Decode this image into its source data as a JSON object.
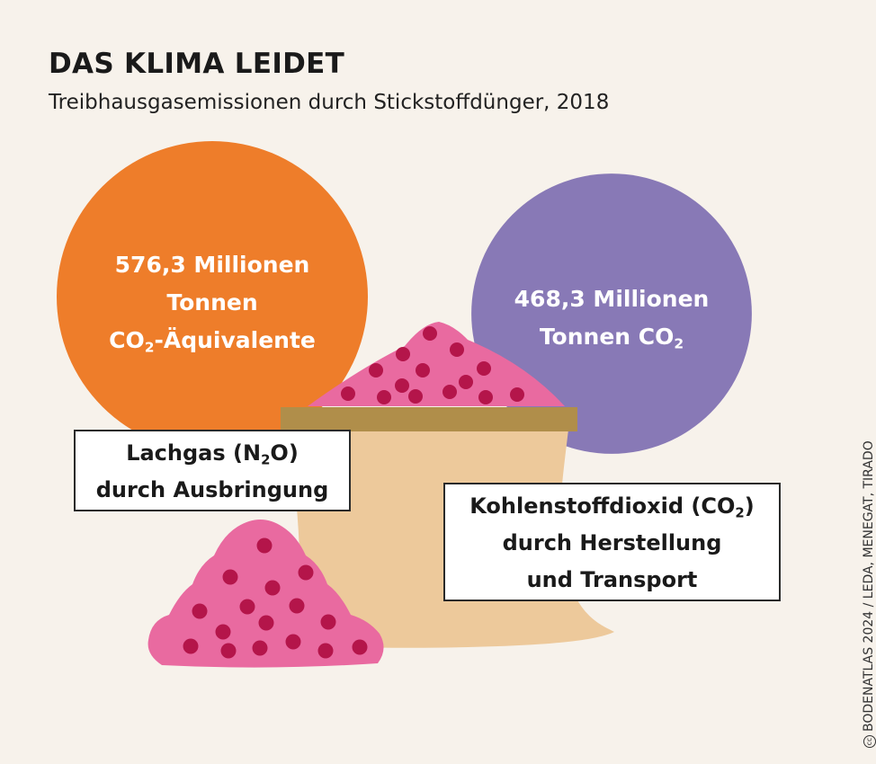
{
  "header": {
    "title": "DAS KLIMA LEIDET",
    "subtitle": "Treibhausgasemissionen durch Stickstoffdünger, 2018"
  },
  "chart_data": {
    "type": "bubble",
    "unit": "Millionen Tonnen",
    "series": [
      {
        "name": "Lachgas (N2O) durch Ausbringung",
        "value": 576.3,
        "unit_label": "Millionen Tonnen CO2-Äquivalente",
        "color": "#ee7d2a",
        "value_lines": [
          "576,3 Millionen",
          "Tonnen",
          "CO",
          "2",
          "-Äquivalente"
        ],
        "label_lines": [
          "Lachgas (N",
          "2",
          "O)",
          "durch Ausbringung"
        ]
      },
      {
        "name": "Kohlenstoffdioxid (CO2) durch Herstellung und Transport",
        "value": 468.3,
        "unit_label": "Millionen Tonnen CO2",
        "color": "#8879b6",
        "value_lines": [
          "468,3 Millionen",
          "Tonnen CO",
          "2"
        ],
        "label_lines": [
          "Kohlenstoffdioxid (CO",
          "2",
          ")",
          "durch Herstellung",
          "und Transport"
        ]
      }
    ]
  },
  "illustration": {
    "sack_color": "#edc99b",
    "sack_rim_color": "#b08e4a",
    "granule_pile_color": "#e96aa0",
    "granule_dot_color": "#b4154a"
  },
  "credit": "BODENATLAS 2024 / LEDA, MENEGAT, TIRADO",
  "credit_icon": "cc-license-icon"
}
